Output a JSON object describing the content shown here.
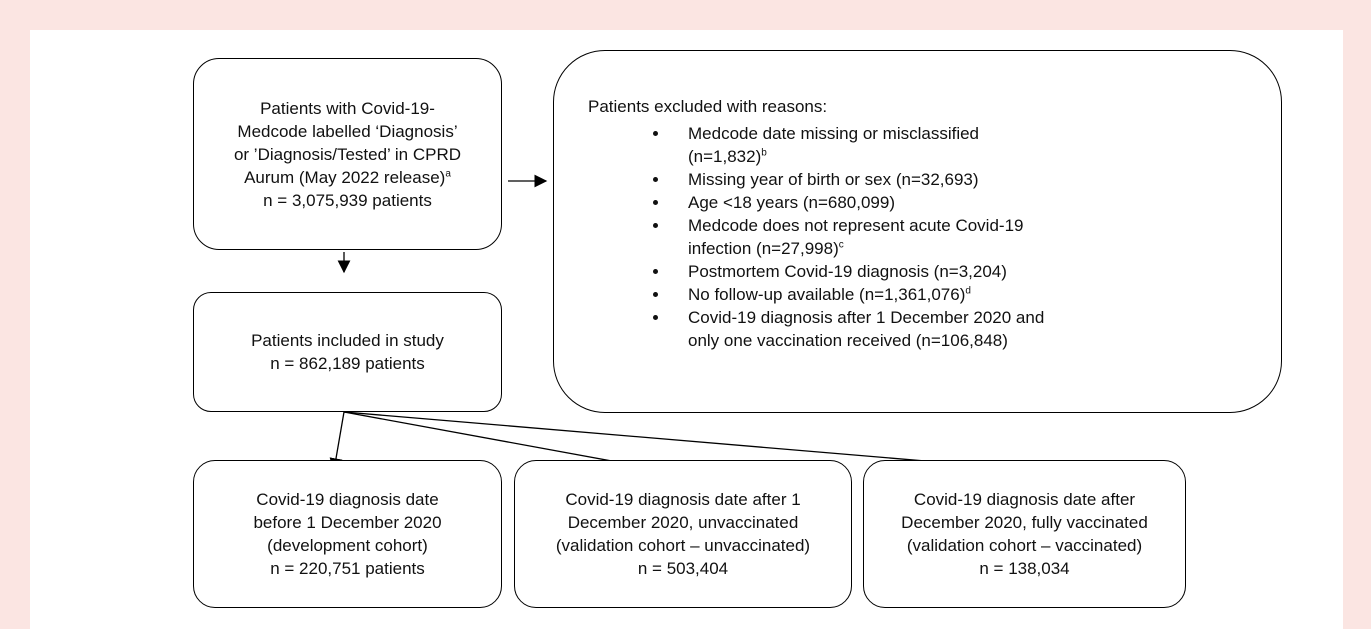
{
  "source_box": {
    "lines": [
      "Patients with Covid-19-",
      "Medcode labelled ‘Diagnosis’",
      "or ’Diagnosis/Tested’ in CPRD",
      "Aurum (May 2022 release)",
      "n = 3,075,939 patients"
    ],
    "note": "a",
    "note_line": 3
  },
  "excluded_box": {
    "title": "Patients excluded with reasons:",
    "reasons": [
      {
        "lines": [
          "Medcode date missing or misclassified",
          "(n=1,832)"
        ],
        "note": "b"
      },
      {
        "lines": [
          "Missing year of birth or sex (n=32,693)"
        ]
      },
      {
        "lines": [
          "Age <18 years (n=680,099)"
        ]
      },
      {
        "lines": [
          "Medcode does not represent acute Covid-19",
          "infection (n=27,998)"
        ],
        "note": "c"
      },
      {
        "lines": [
          "Postmortem Covid-19 diagnosis (n=3,204)"
        ]
      },
      {
        "lines": [
          "No follow-up available (n=1,361,076)"
        ],
        "note": "d"
      },
      {
        "lines": [
          "Covid-19 diagnosis after 1 December 2020 and",
          "only one vaccination received (n=106,848)"
        ]
      }
    ]
  },
  "included_box": {
    "lines": [
      "Patients included in study",
      "n = 862,189 patients"
    ]
  },
  "cohorts": [
    {
      "lines": [
        "Covid-19 diagnosis date",
        "before 1 December 2020",
        "(development cohort)",
        "n = 220,751 patients"
      ]
    },
    {
      "lines": [
        "Covid-19 diagnosis date after 1",
        "December 2020, unvaccinated",
        "(validation cohort – unvaccinated)",
        "n = 503,404"
      ]
    },
    {
      "lines": [
        "Covid-19 diagnosis date after",
        "December 2020, fully vaccinated",
        "(validation cohort – vaccinated)",
        "n = 138,034"
      ]
    }
  ]
}
